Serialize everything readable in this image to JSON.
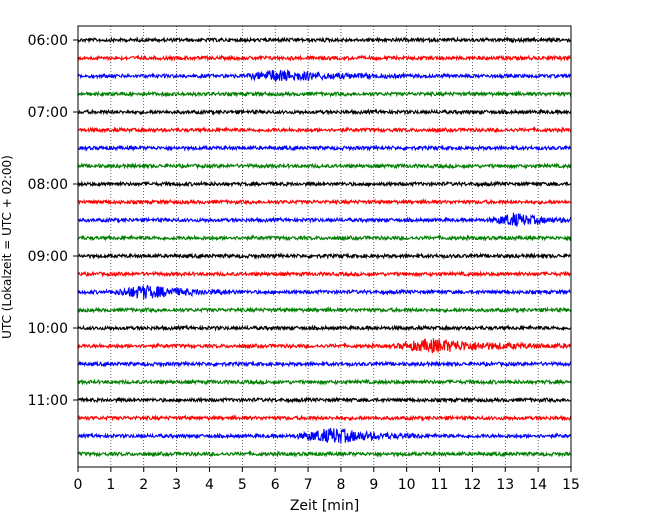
{
  "chart_data": {
    "type": "line",
    "xlabel": "Zeit  [min]",
    "ylabel": "UTC (Lokalzeit = UTC + 02:00)",
    "xlim": [
      0,
      15
    ],
    "x_ticks": [
      "0",
      "1",
      "2",
      "3",
      "4",
      "5",
      "6",
      "7",
      "8",
      "9",
      "10",
      "11",
      "12",
      "13",
      "14",
      "15"
    ],
    "y_ticks": [
      "06:00",
      "07:00",
      "08:00",
      "09:00",
      "10:00",
      "11:00"
    ],
    "grid": "vertical dotted",
    "trace_interval_minutes": 15,
    "trace_colors": [
      "#000000",
      "#ff0000",
      "#0000ff",
      "#008000"
    ],
    "traces": [
      {
        "start": "06:00",
        "color": "#000000",
        "events": []
      },
      {
        "start": "06:15",
        "color": "#ff0000",
        "events": []
      },
      {
        "start": "06:30",
        "color": "#0000ff",
        "events": [
          {
            "from": 5.0,
            "to": 10.0,
            "peak": 6.0,
            "amplitude": 5
          }
        ]
      },
      {
        "start": "06:45",
        "color": "#008000",
        "events": []
      },
      {
        "start": "07:00",
        "color": "#000000",
        "events": []
      },
      {
        "start": "07:15",
        "color": "#ff0000",
        "events": []
      },
      {
        "start": "07:30",
        "color": "#0000ff",
        "events": []
      },
      {
        "start": "07:45",
        "color": "#008000",
        "events": []
      },
      {
        "start": "08:00",
        "color": "#000000",
        "events": []
      },
      {
        "start": "08:15",
        "color": "#ff0000",
        "events": []
      },
      {
        "start": "08:30",
        "color": "#0000ff",
        "events": [
          {
            "from": 12.5,
            "to": 15.0,
            "peak": 13.3,
            "amplitude": 6
          }
        ]
      },
      {
        "start": "08:45",
        "color": "#008000",
        "events": []
      },
      {
        "start": "09:00",
        "color": "#000000",
        "events": []
      },
      {
        "start": "09:15",
        "color": "#ff0000",
        "events": []
      },
      {
        "start": "09:30",
        "color": "#0000ff",
        "events": [
          {
            "from": 1.0,
            "to": 5.0,
            "peak": 2.0,
            "amplitude": 6
          }
        ]
      },
      {
        "start": "09:45",
        "color": "#008000",
        "events": []
      },
      {
        "start": "10:00",
        "color": "#000000",
        "events": []
      },
      {
        "start": "10:15",
        "color": "#ff0000",
        "events": [
          {
            "from": 9.5,
            "to": 15.0,
            "peak": 10.8,
            "amplitude": 6
          }
        ]
      },
      {
        "start": "10:30",
        "color": "#0000ff",
        "events": []
      },
      {
        "start": "10:45",
        "color": "#008000",
        "events": []
      },
      {
        "start": "11:00",
        "color": "#000000",
        "events": []
      },
      {
        "start": "11:15",
        "color": "#ff0000",
        "events": []
      },
      {
        "start": "11:30",
        "color": "#0000ff",
        "events": [
          {
            "from": 6.5,
            "to": 10.5,
            "peak": 7.8,
            "amplitude": 7
          }
        ]
      },
      {
        "start": "11:45",
        "color": "#008000",
        "events": []
      }
    ]
  }
}
